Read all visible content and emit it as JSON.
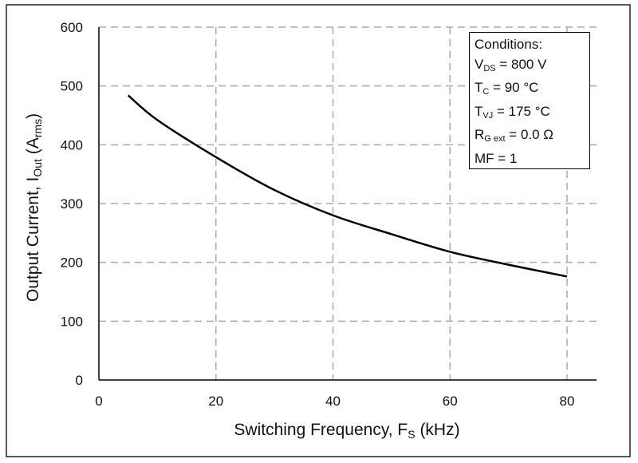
{
  "chart_data": {
    "type": "line",
    "title": "",
    "xlabel": "Switching Frequency, F",
    "xlabel_sub": "S",
    "xlabel_unit": " (kHz)",
    "ylabel": "Output Current, I",
    "ylabel_sub": "Out",
    "ylabel_unit_open": " (A",
    "ylabel_unit_sub": "rms",
    "ylabel_unit_close": ")",
    "xlim": [
      0,
      85
    ],
    "ylim": [
      0,
      600
    ],
    "xticks": [
      0,
      20,
      40,
      60,
      80
    ],
    "yticks": [
      0,
      100,
      200,
      300,
      400,
      500,
      600
    ],
    "grid": true,
    "series": [
      {
        "name": "Output Current",
        "x": [
          5,
          10,
          20,
          30,
          40,
          50,
          60,
          70,
          80
        ],
        "y": [
          484,
          442,
          379,
          323,
          280,
          248,
          218,
          196,
          176
        ]
      }
    ],
    "conditions": {
      "title": "Conditions:",
      "lines": [
        {
          "main": "V",
          "sub": "DS",
          "rest": " = 800 V"
        },
        {
          "main": "T",
          "sub": "C",
          "rest": " = 90 °C"
        },
        {
          "main": "T",
          "sub": "VJ",
          "rest": " = 175 °C"
        },
        {
          "main": "R",
          "sub": "G ext",
          "rest": " = 0.0 Ω"
        },
        {
          "main": "MF = 1",
          "sub": "",
          "rest": ""
        }
      ]
    }
  }
}
